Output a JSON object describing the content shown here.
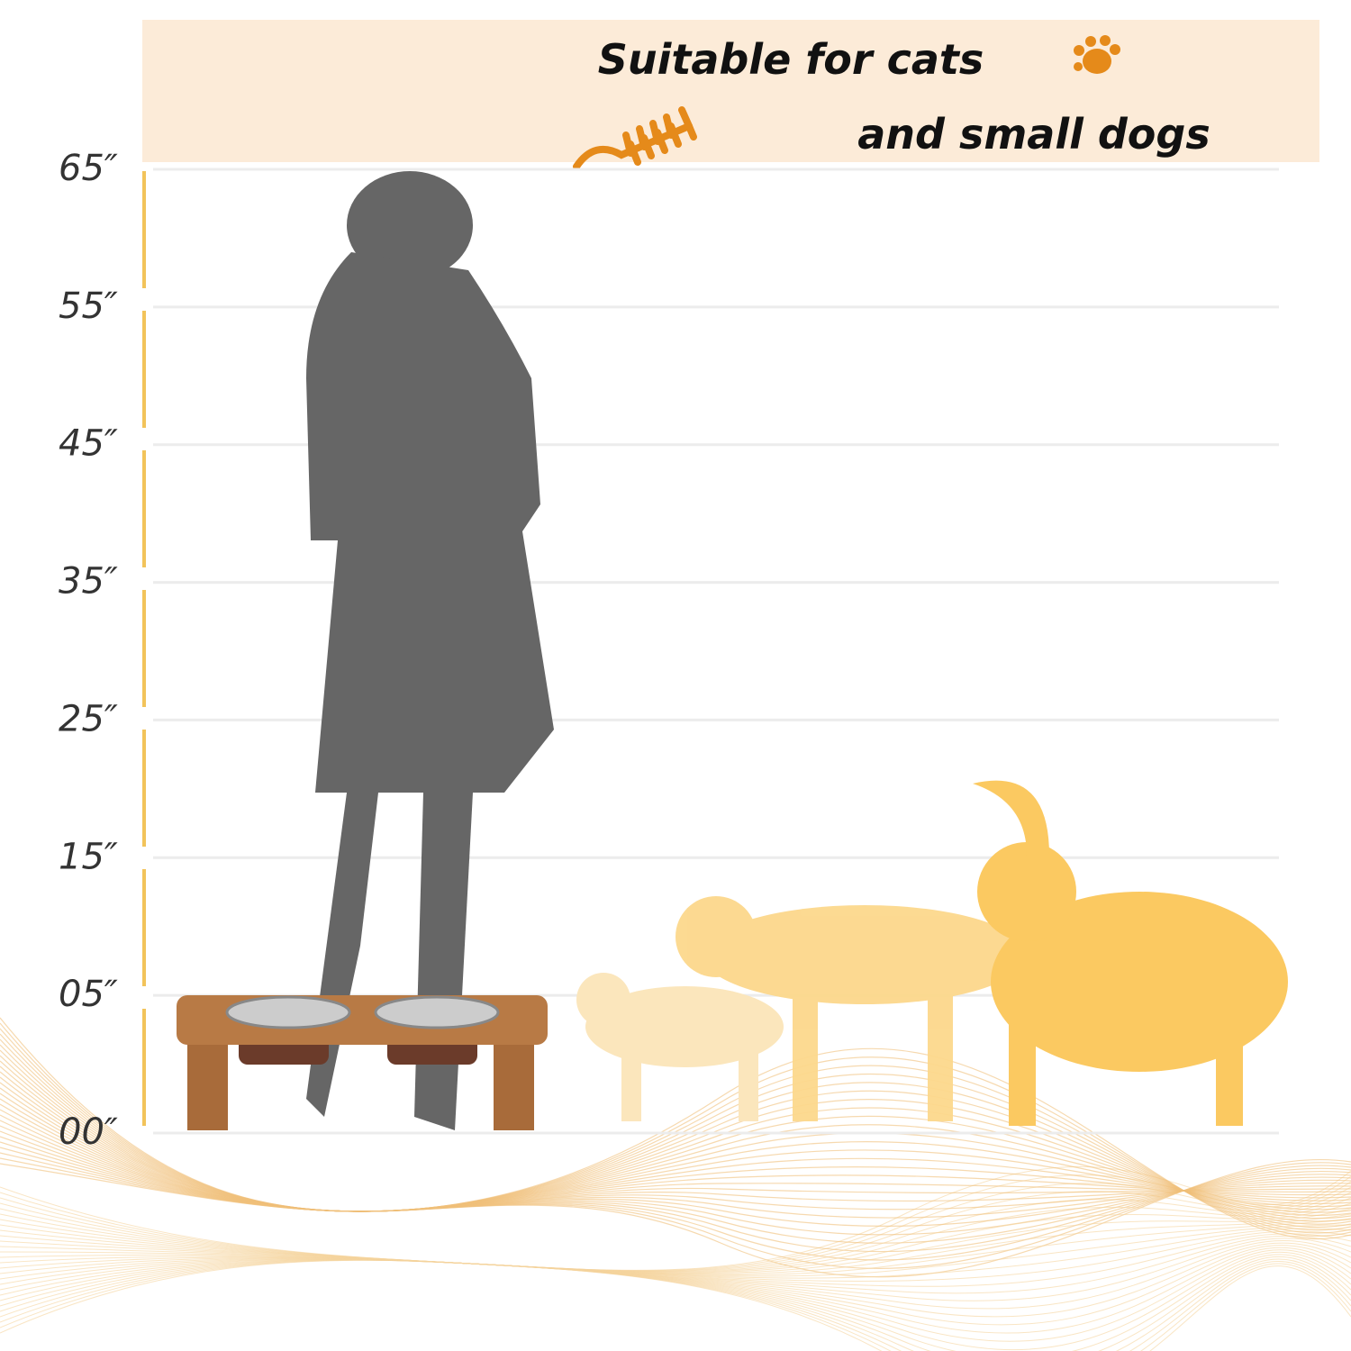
{
  "header": {
    "line1": "Suitable for cats",
    "line2": "and small dogs"
  },
  "scale": {
    "labels": [
      "65″",
      "55″",
      "45″",
      "35″",
      "25″",
      "15″",
      "05″",
      "00″"
    ]
  }
}
